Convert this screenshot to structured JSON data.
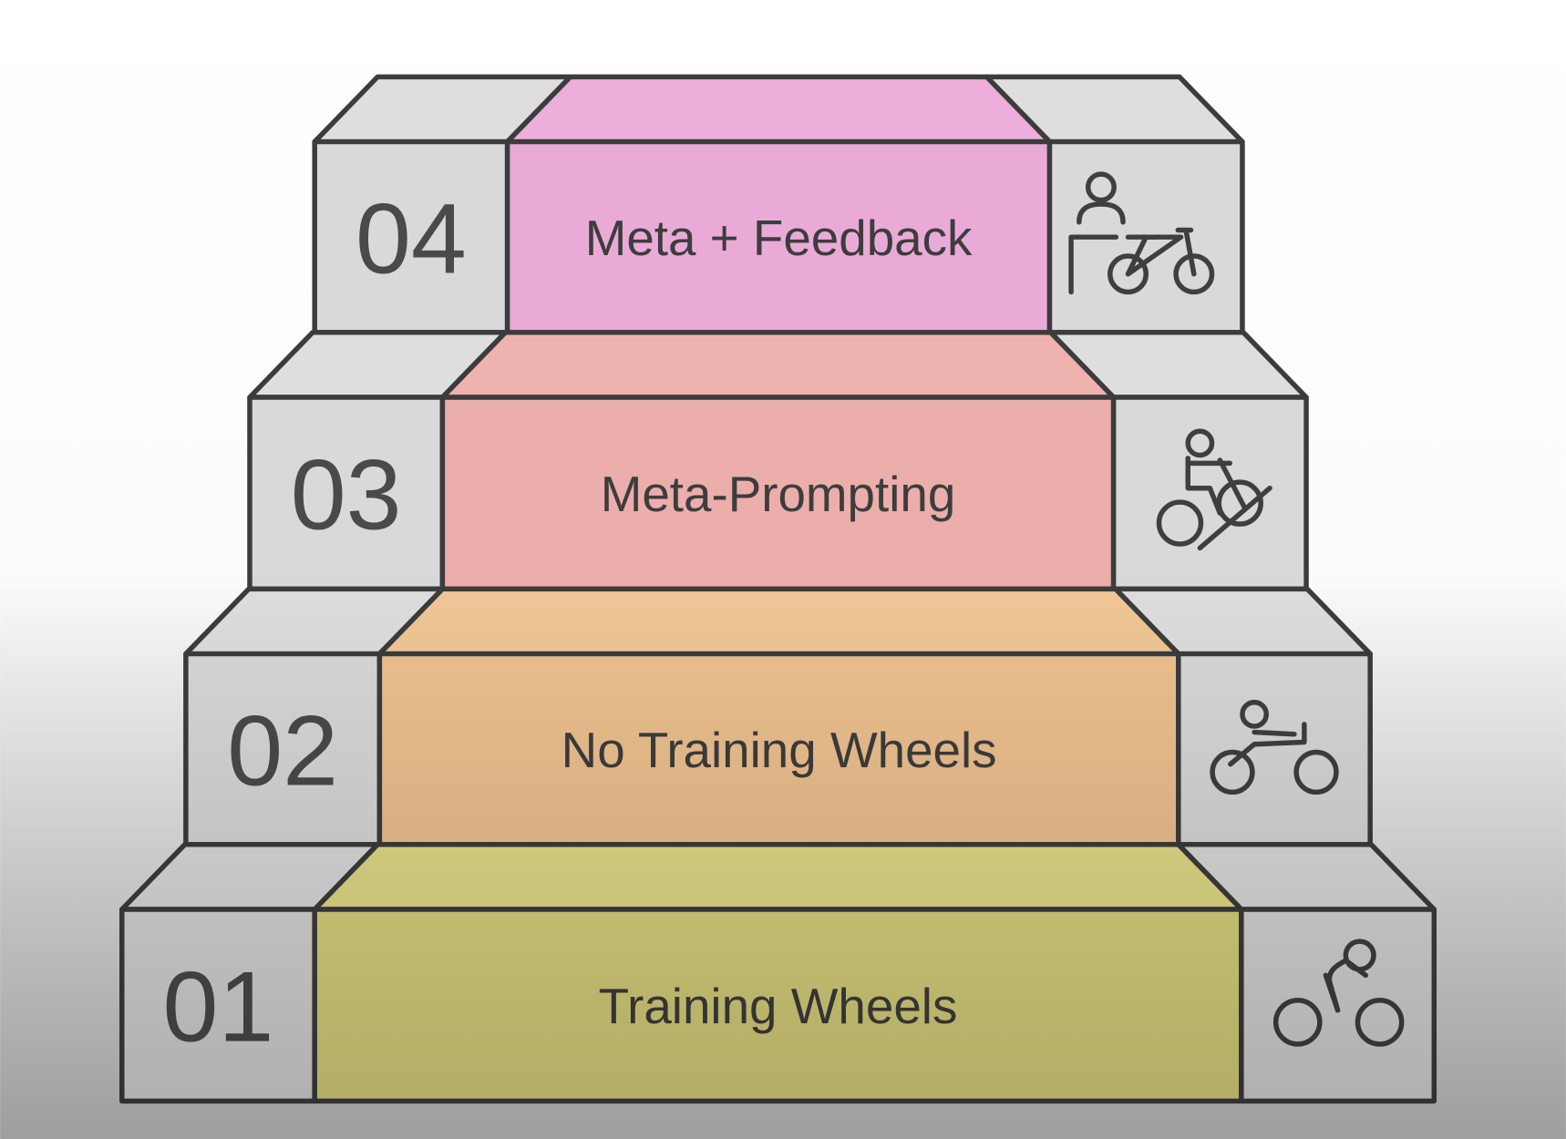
{
  "diagram": {
    "type": "staircase",
    "colors": {
      "outline": "#3c3c3c",
      "side_front": "#d9d9d9",
      "side_top": "#dedede",
      "text": "#3d3d3d"
    },
    "steps": [
      {
        "number": "01",
        "label": "Training Wheels",
        "front_color": "#dcd57e",
        "top_color": "#e3de88",
        "icon": "cyclist-icon"
      },
      {
        "number": "02",
        "label": "No Training Wheels",
        "front_color": "#efc290",
        "top_color": "#f1c796",
        "icon": "recumbent-cyclist-icon"
      },
      {
        "number": "03",
        "label": "Meta-Prompting",
        "front_color": "#ebaeab",
        "top_color": "#eeb3ae",
        "icon": "uphill-cyclist-icon"
      },
      {
        "number": "04",
        "label": "Meta + Feedback",
        "front_color": "#eaaad8",
        "top_color": "#edaedb",
        "icon": "coach-with-bicycle-icon"
      }
    ]
  }
}
